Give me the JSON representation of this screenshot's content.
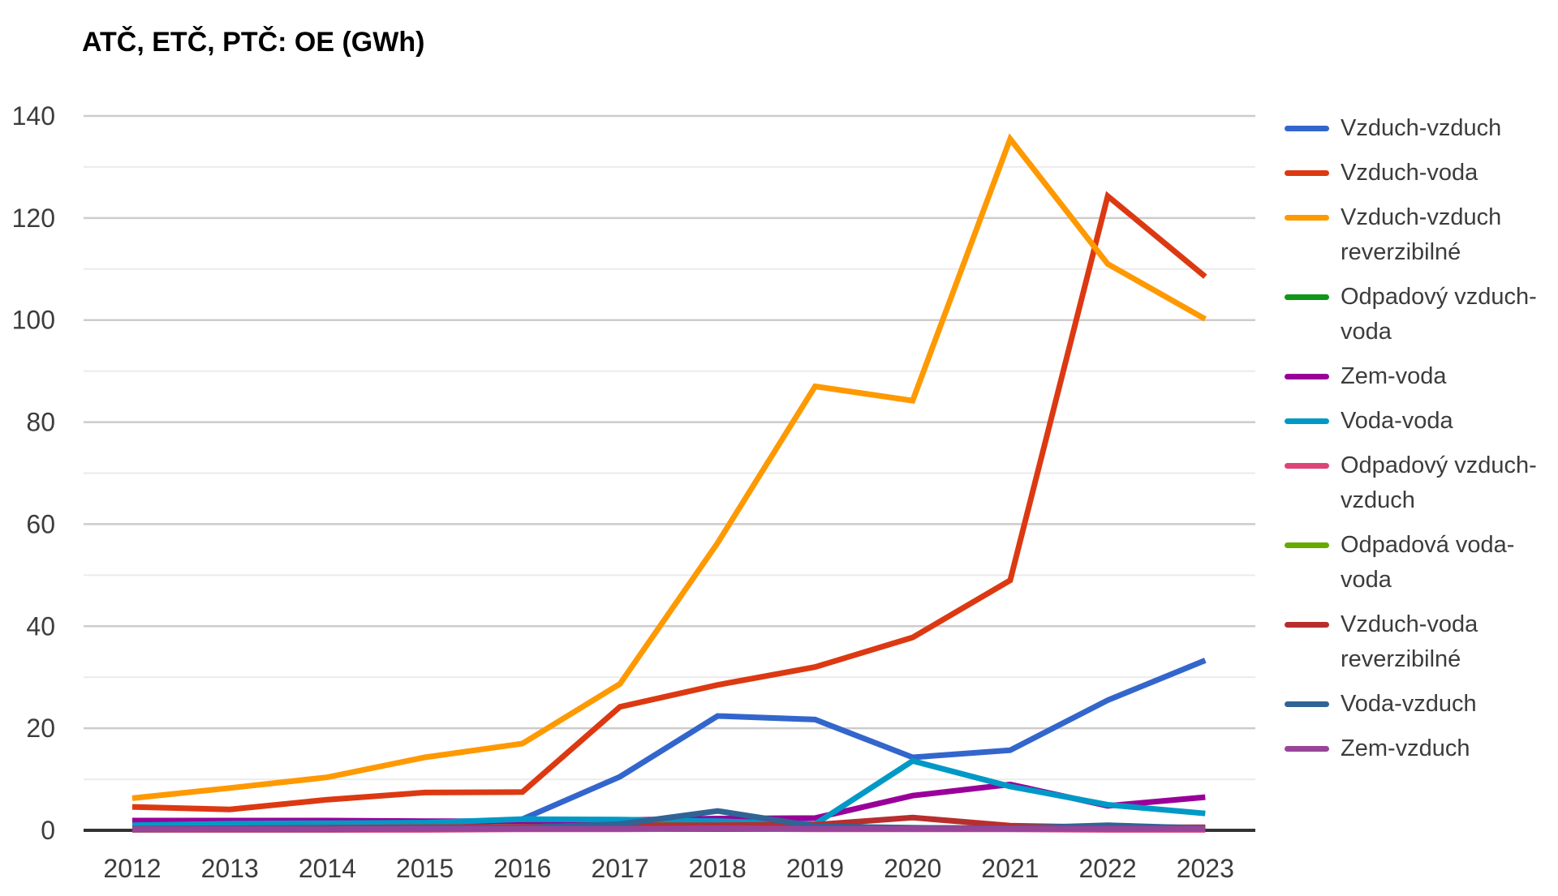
{
  "title": "ATČ, ETČ, PTČ: OE (GWh)",
  "chart_data": {
    "type": "line",
    "title": "ATČ, ETČ, PTČ: OE (GWh)",
    "x": [
      2012,
      2013,
      2014,
      2015,
      2016,
      2017,
      2018,
      2019,
      2020,
      2021,
      2022,
      2023
    ],
    "series": [
      {
        "name": "Vzduch-vzduch",
        "color": "#3366CC",
        "values": [
          0.4,
          0.5,
          0.7,
          0.9,
          2.2,
          10.5,
          22.4,
          21.7,
          14.3,
          15.7,
          25.5,
          33.3
        ]
      },
      {
        "name": "Vzduch-voda",
        "color": "#DC3912",
        "values": [
          4.6,
          4.1,
          6.0,
          7.4,
          7.5,
          24.2,
          28.5,
          32.0,
          37.8,
          49.0,
          124.3,
          108.5
        ]
      },
      {
        "name": "Vzduch-vzduch reverzibilné",
        "color": "#FF9900",
        "values": [
          6.3,
          8.3,
          10.4,
          14.3,
          17.0,
          28.7,
          56.3,
          87.0,
          84.2,
          135.5,
          111.0,
          100.2
        ]
      },
      {
        "name": "Odpadový vzduch-voda",
        "color": "#109618",
        "values": [
          0.1,
          0.1,
          0.1,
          0.2,
          0.3,
          0.4,
          0.5,
          0.4,
          0.3,
          0.3,
          0.3,
          0.3
        ]
      },
      {
        "name": "Zem-voda",
        "color": "#990099",
        "values": [
          1.9,
          1.9,
          1.9,
          1.8,
          1.8,
          2.0,
          2.3,
          2.4,
          6.8,
          9.0,
          4.8,
          6.5
        ]
      },
      {
        "name": "Voda-voda",
        "color": "#0099C6",
        "values": [
          1.0,
          1.3,
          1.4,
          1.5,
          2.2,
          2.1,
          1.8,
          1.2,
          13.6,
          8.6,
          5.0,
          3.3
        ]
      },
      {
        "name": "Odpadový vzduch-vzduch",
        "color": "#DD4477",
        "values": [
          0.1,
          0.1,
          0.1,
          0.1,
          0.2,
          0.2,
          0.3,
          0.2,
          0.2,
          0.2,
          0.1,
          0.1
        ]
      },
      {
        "name": "Odpadová voda-voda",
        "color": "#66AA00",
        "values": [
          0.2,
          0.3,
          0.4,
          0.5,
          0.6,
          1.1,
          0.9,
          0.6,
          0.5,
          0.4,
          0.3,
          0.3
        ]
      },
      {
        "name": "Vzduch-voda reverzibilné",
        "color": "#B82E2E",
        "values": [
          0.3,
          0.4,
          0.5,
          0.6,
          0.7,
          1.0,
          1.0,
          1.1,
          2.5,
          0.9,
          0.6,
          0.6
        ]
      },
      {
        "name": "Voda-vzduch",
        "color": "#316395",
        "values": [
          0.2,
          0.3,
          0.3,
          0.4,
          0.5,
          1.2,
          3.8,
          0.8,
          0.5,
          0.4,
          1.0,
          0.4
        ]
      },
      {
        "name": "Zem-vzduch",
        "color": "#994499",
        "values": [
          0.2,
          0.2,
          0.2,
          0.3,
          0.3,
          0.3,
          0.4,
          0.3,
          0.3,
          0.3,
          0.3,
          0.3
        ]
      }
    ],
    "xlabel": "",
    "ylabel": "",
    "ylim": [
      0,
      140
    ],
    "yticks": [
      0,
      20,
      40,
      60,
      80,
      100,
      120,
      140
    ],
    "minor_yticks": [
      10,
      30,
      50,
      70,
      90,
      110,
      130
    ],
    "grid": true,
    "legend_position": "right"
  },
  "style": {
    "background": "#ffffff",
    "title_color": "#000000",
    "axis_label_color": "#3c3c3c",
    "legend_text_color": "#3c3c3c",
    "major_grid_color": "#cccccc",
    "minor_grid_color": "#ebebeb",
    "baseline_color": "#333333"
  }
}
